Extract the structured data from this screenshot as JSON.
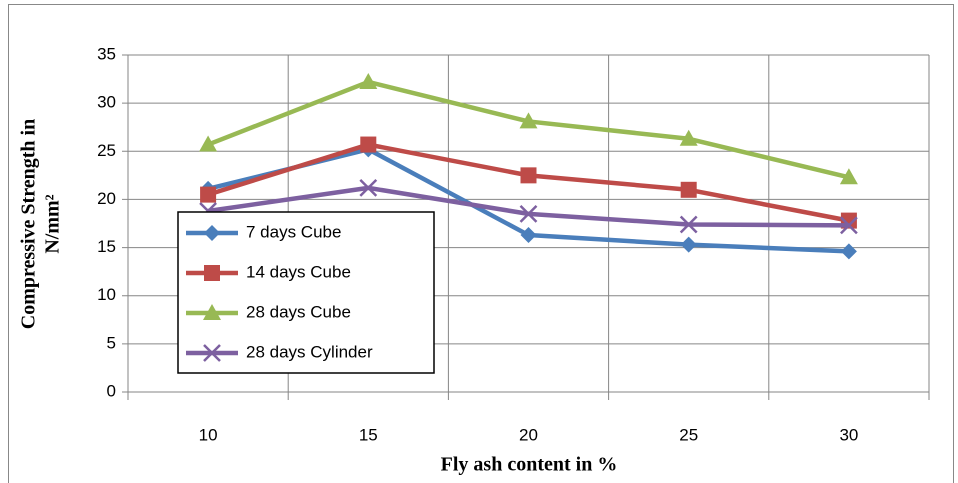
{
  "chart_data": {
    "type": "line",
    "x_label": "Fly ash content in %",
    "y_label": [
      "Compressive Strength in",
      "N/mm²"
    ],
    "categories": [
      "10",
      "15",
      "20",
      "25",
      "30"
    ],
    "series": [
      {
        "name": "7 days Cube",
        "color": "#4a7ebb",
        "marker": "diamond",
        "values": [
          21.1,
          25.2,
          16.3,
          15.3,
          14.6
        ]
      },
      {
        "name": "14 days Cube",
        "color": "#be4b48",
        "marker": "square",
        "values": [
          20.5,
          25.7,
          22.5,
          21.0,
          17.8
        ]
      },
      {
        "name": "28 days Cube",
        "color": "#98b954",
        "marker": "triangle",
        "values": [
          25.7,
          32.2,
          28.1,
          26.3,
          22.3
        ]
      },
      {
        "name": "28 days Cylinder",
        "color": "#7d60a0",
        "marker": "x",
        "values": [
          18.8,
          21.2,
          18.5,
          17.4,
          17.3
        ]
      }
    ],
    "ylim": [
      0,
      35
    ],
    "yticks": [
      0,
      5,
      10,
      15,
      20,
      25,
      30,
      35
    ],
    "grid": true,
    "legend": "left"
  }
}
